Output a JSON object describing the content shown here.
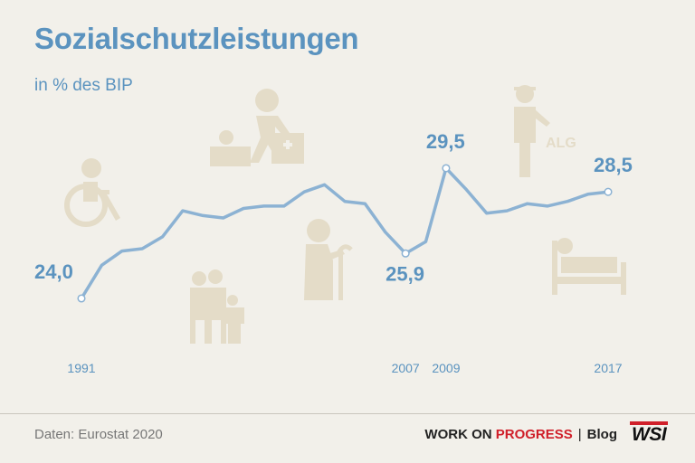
{
  "title": "Sozialschutzleistungen",
  "subtitle": "in % des BIP",
  "icon_label_alg": "ALG",
  "footer": {
    "source": "Daten: Eurostat 2020",
    "brand_part1": "WORK ON ",
    "brand_part2": "PROGRESS",
    "separator": "|",
    "blog": "Blog",
    "logo": "WSI"
  },
  "colors": {
    "line": "#8cb2d3",
    "label": "#5b93bf",
    "icons": "#e4dcc8",
    "background": "#f2f0ea",
    "accent": "#d0202a"
  },
  "icons": [
    "wheelchair-icon",
    "caregiver-icon",
    "family-icon",
    "elderly-icon",
    "unemployed-icon",
    "sick-bed-icon"
  ],
  "chart_data": {
    "type": "line",
    "title": "Sozialschutzleistungen",
    "subtitle": "in % des BIP",
    "x": [
      1991,
      1992,
      1993,
      1994,
      1995,
      1996,
      1997,
      1998,
      1999,
      2000,
      2001,
      2002,
      2003,
      2004,
      2005,
      2006,
      2007,
      2008,
      2009,
      2010,
      2011,
      2012,
      2013,
      2014,
      2015,
      2016,
      2017
    ],
    "y": [
      24.0,
      25.4,
      26.0,
      26.1,
      26.6,
      27.7,
      27.5,
      27.4,
      27.8,
      27.9,
      27.9,
      28.5,
      28.8,
      28.1,
      28.0,
      26.8,
      25.9,
      26.4,
      29.5,
      28.6,
      27.6,
      27.7,
      28.0,
      27.9,
      28.1,
      28.4,
      28.5
    ],
    "ylim": [
      23,
      30
    ],
    "xlim": [
      1991,
      2017
    ],
    "data_labels": [
      {
        "x": 1991,
        "text": "24,0"
      },
      {
        "x": 2007,
        "text": "25,9"
      },
      {
        "x": 2009,
        "text": "29,5"
      },
      {
        "x": 2017,
        "text": "28,5"
      }
    ],
    "tick_labels": [
      "1991",
      "2007",
      "2009",
      "2017"
    ],
    "grid": false,
    "legend": "none"
  }
}
